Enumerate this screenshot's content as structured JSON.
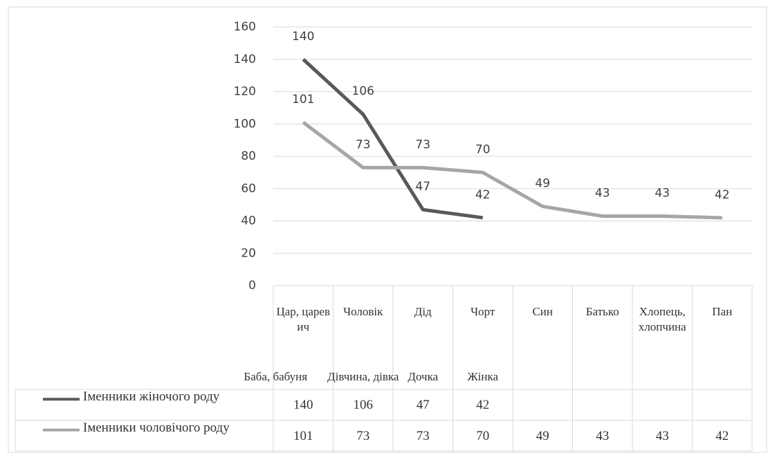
{
  "chart_data": {
    "type": "line",
    "categories": [
      "Цар, царевич",
      "Чоловік",
      "Дід",
      "Чорт",
      "Син",
      "Батько",
      "Хлопець, хлопчина",
      "Пан"
    ],
    "categories_female": [
      "Баба, бабуня",
      "Дівчина, дівка",
      "Дочка",
      "Жінка"
    ],
    "series": [
      {
        "name": "Іменники жіночого роду",
        "color": "#595959",
        "values": [
          140,
          106,
          47,
          42,
          null,
          null,
          null,
          null
        ]
      },
      {
        "name": "Іменники чоловічого роду",
        "color": "#a6a6a6",
        "values": [
          101,
          73,
          73,
          70,
          49,
          43,
          43,
          42
        ]
      }
    ],
    "ylim": [
      0,
      160
    ],
    "yticks": [
      0,
      20,
      40,
      60,
      80,
      100,
      120,
      140,
      160
    ],
    "grid": true,
    "data_table": true
  }
}
